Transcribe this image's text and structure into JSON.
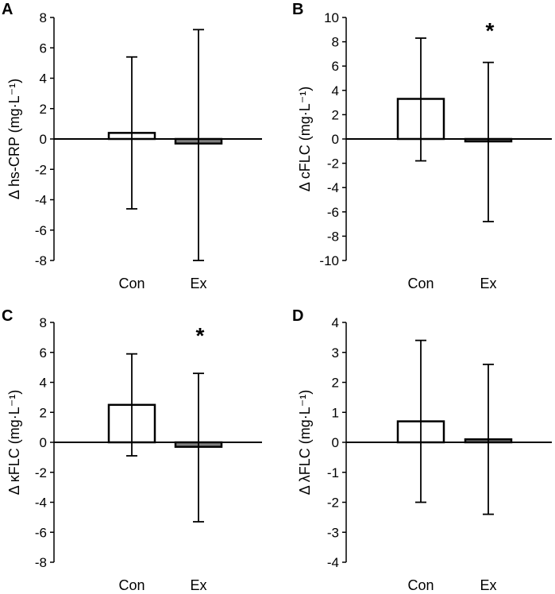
{
  "figure": {
    "colors": {
      "axis": "#000000",
      "con_fill": "#ffffff",
      "ex_fill": "#808080",
      "bar_stroke": "#000000"
    }
  },
  "chart_data": [
    {
      "type": "bar",
      "panel_label": "A",
      "ylabel": "Δ hs-CRP (mg·L⁻¹)",
      "categories": [
        "Con",
        "Ex"
      ],
      "values": [
        0.4,
        -0.3
      ],
      "error_upper": [
        5.4,
        7.2
      ],
      "error_lower": [
        -4.6,
        -8.0
      ],
      "ylim": [
        -8,
        8
      ],
      "yticks": [
        8,
        6,
        4,
        2,
        0,
        -2,
        -4,
        -6,
        -8
      ],
      "annotations": [],
      "grid": false
    },
    {
      "type": "bar",
      "panel_label": "B",
      "ylabel": "Δ cFLC (mg·L⁻¹)",
      "categories": [
        "Con",
        "Ex"
      ],
      "values": [
        3.3,
        -0.2
      ],
      "error_upper": [
        8.3,
        6.3
      ],
      "error_lower": [
        -1.8,
        -6.8
      ],
      "ylim": [
        -10,
        10
      ],
      "yticks": [
        10,
        8,
        6,
        4,
        2,
        0,
        -2,
        -4,
        -6,
        -8,
        -10
      ],
      "annotations": [
        {
          "category": "Ex",
          "text": "*"
        }
      ],
      "grid": false
    },
    {
      "type": "bar",
      "panel_label": "C",
      "ylabel": "Δ κFLC (mg·L⁻¹)",
      "categories": [
        "Con",
        "Ex"
      ],
      "values": [
        2.5,
        -0.3
      ],
      "error_upper": [
        5.9,
        4.6
      ],
      "error_lower": [
        -0.9,
        -5.3
      ],
      "ylim": [
        -8,
        8
      ],
      "yticks": [
        8,
        6,
        4,
        2,
        0,
        -2,
        -4,
        -6,
        -8
      ],
      "annotations": [
        {
          "category": "Ex",
          "text": "*"
        }
      ],
      "grid": false
    },
    {
      "type": "bar",
      "panel_label": "D",
      "ylabel": "Δ λFLC (mg·L⁻¹)",
      "categories": [
        "Con",
        "Ex"
      ],
      "values": [
        0.7,
        0.1
      ],
      "error_upper": [
        3.4,
        2.6
      ],
      "error_lower": [
        -2.0,
        -2.4
      ],
      "ylim": [
        -4,
        4
      ],
      "yticks": [
        4,
        3,
        2,
        1,
        0,
        -1,
        -2,
        -3,
        -4
      ],
      "annotations": [],
      "grid": false
    }
  ]
}
